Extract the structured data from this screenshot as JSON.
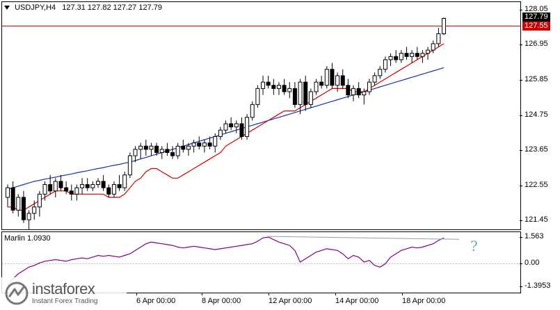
{
  "header": {
    "symbol": "USDJPY,H4",
    "ohlc": "127.31 127.82 127.27 127.79"
  },
  "price_axis": [
    "128.05",
    "126.95",
    "125.85",
    "124.75",
    "123.65",
    "122.55",
    "121.45"
  ],
  "current_price": "127.79",
  "hline_price": "127.55",
  "indicator": {
    "label": "Marlin 1.0930",
    "axis": [
      "1.563",
      "0.00",
      "-1.3953"
    ],
    "annotation": "?"
  },
  "time_axis": [
    "6 Apr 00:00",
    "8 Apr 00:00",
    "12 Apr 00:00",
    "14 Apr 00:00",
    "18 Apr 00:00"
  ],
  "watermark": {
    "name": "instaforex",
    "tagline": "Instant Forex Trading"
  },
  "colors": {
    "bull": "#ffffff",
    "bear": "#000000",
    "ma_fast": "#cc0000",
    "ma_slow": "#1a2fb0",
    "hline": "#cc0000",
    "osc": "#800080",
    "div": "#8fa0b0",
    "qmark": "#6fa8b8"
  },
  "chart_data": {
    "type": "candlestick",
    "y_axis_ticks": [
      128.05,
      126.95,
      125.85,
      124.75,
      123.65,
      122.55,
      121.45
    ],
    "ylim": [
      121.2,
      128.3
    ],
    "candles": [
      [
        122.2,
        122.6,
        121.9,
        122.5
      ],
      [
        122.5,
        122.7,
        121.7,
        121.8
      ],
      [
        121.8,
        122.3,
        121.6,
        122.2
      ],
      [
        122.2,
        122.4,
        121.4,
        121.5
      ],
      [
        121.5,
        121.8,
        121.1,
        121.7
      ],
      [
        121.7,
        122.1,
        121.5,
        121.9
      ],
      [
        121.9,
        122.4,
        121.6,
        122.3
      ],
      [
        122.3,
        122.7,
        122.1,
        122.6
      ],
      [
        122.6,
        122.9,
        122.3,
        122.4
      ],
      [
        122.4,
        122.8,
        122.2,
        122.7
      ],
      [
        122.7,
        122.9,
        122.4,
        122.5
      ],
      [
        122.5,
        122.7,
        122.3,
        122.4
      ],
      [
        122.4,
        122.6,
        122.1,
        122.3
      ],
      [
        122.3,
        122.6,
        122.1,
        122.5
      ],
      [
        122.5,
        122.8,
        122.3,
        122.6
      ],
      [
        122.6,
        122.8,
        122.4,
        122.5
      ],
      [
        122.5,
        122.7,
        122.4,
        122.6
      ],
      [
        122.6,
        122.8,
        122.5,
        122.7
      ],
      [
        122.7,
        122.9,
        122.4,
        122.5
      ],
      [
        122.5,
        122.6,
        122.2,
        122.3
      ],
      [
        122.3,
        122.7,
        122.2,
        122.6
      ],
      [
        122.6,
        122.9,
        122.4,
        122.5
      ],
      [
        122.5,
        123.0,
        122.4,
        122.9
      ],
      [
        122.9,
        123.6,
        122.8,
        123.5
      ],
      [
        123.5,
        123.8,
        123.3,
        123.7
      ],
      [
        123.7,
        123.9,
        123.4,
        123.8
      ],
      [
        123.8,
        124.0,
        123.5,
        123.7
      ],
      [
        123.7,
        123.9,
        123.5,
        123.8
      ],
      [
        123.8,
        123.9,
        123.5,
        123.6
      ],
      [
        123.6,
        123.8,
        123.4,
        123.7
      ],
      [
        123.7,
        123.9,
        123.5,
        123.6
      ],
      [
        123.6,
        123.8,
        123.4,
        123.5
      ],
      [
        123.5,
        123.9,
        123.4,
        123.8
      ],
      [
        123.8,
        124.0,
        123.6,
        123.7
      ],
      [
        123.7,
        123.9,
        123.5,
        123.8
      ],
      [
        123.8,
        124.0,
        123.6,
        123.9
      ],
      [
        123.9,
        124.1,
        123.7,
        123.8
      ],
      [
        123.8,
        124.0,
        123.6,
        123.9
      ],
      [
        123.9,
        124.1,
        123.7,
        123.8
      ],
      [
        123.8,
        124.2,
        123.6,
        124.1
      ],
      [
        124.1,
        124.4,
        124.0,
        124.3
      ],
      [
        124.3,
        124.6,
        124.2,
        124.5
      ],
      [
        124.5,
        124.7,
        124.3,
        124.4
      ],
      [
        124.4,
        124.6,
        124.2,
        124.5
      ],
      [
        124.5,
        124.7,
        124.0,
        124.1
      ],
      [
        124.1,
        124.8,
        124.0,
        124.7
      ],
      [
        124.7,
        125.2,
        124.6,
        125.1
      ],
      [
        125.1,
        125.7,
        125.0,
        125.6
      ],
      [
        125.6,
        126.0,
        125.4,
        125.8
      ],
      [
        125.8,
        126.0,
        125.6,
        125.7
      ],
      [
        125.7,
        125.9,
        125.4,
        125.6
      ],
      [
        125.6,
        125.8,
        125.4,
        125.7
      ],
      [
        125.7,
        125.9,
        125.4,
        125.5
      ],
      [
        125.5,
        125.8,
        125.3,
        125.6
      ],
      [
        125.6,
        125.8,
        125.0,
        125.1
      ],
      [
        125.1,
        125.9,
        124.8,
        125.8
      ],
      [
        125.8,
        126.0,
        124.9,
        125.1
      ],
      [
        125.1,
        125.6,
        125.0,
        125.5
      ],
      [
        125.5,
        125.9,
        125.4,
        125.8
      ],
      [
        125.8,
        126.0,
        125.6,
        125.7
      ],
      [
        125.7,
        126.3,
        125.6,
        126.2
      ],
      [
        126.2,
        126.4,
        125.6,
        125.7
      ],
      [
        125.7,
        126.1,
        125.5,
        126.0
      ],
      [
        126.0,
        126.2,
        125.6,
        125.7
      ],
      [
        125.7,
        125.9,
        125.3,
        125.4
      ],
      [
        125.4,
        125.7,
        125.2,
        125.6
      ],
      [
        125.6,
        125.8,
        125.3,
        125.4
      ],
      [
        125.4,
        125.6,
        125.1,
        125.5
      ],
      [
        125.5,
        125.9,
        125.4,
        125.8
      ],
      [
        125.8,
        126.1,
        125.7,
        126.0
      ],
      [
        126.0,
        126.3,
        125.9,
        126.2
      ],
      [
        126.2,
        126.6,
        126.1,
        126.5
      ],
      [
        126.5,
        126.7,
        126.3,
        126.6
      ],
      [
        126.6,
        126.8,
        126.4,
        126.5
      ],
      [
        126.5,
        126.8,
        126.4,
        126.7
      ],
      [
        126.7,
        126.9,
        126.5,
        126.6
      ],
      [
        126.6,
        126.8,
        126.4,
        126.7
      ],
      [
        126.7,
        126.9,
        126.5,
        126.6
      ],
      [
        126.6,
        126.8,
        126.4,
        126.7
      ],
      [
        126.7,
        126.9,
        126.5,
        126.8
      ],
      [
        126.8,
        127.1,
        126.7,
        127.0
      ],
      [
        127.0,
        127.5,
        126.9,
        127.31
      ],
      [
        127.31,
        127.82,
        127.27,
        127.79
      ]
    ],
    "ma_fast": [
      121.9,
      121.9,
      121.8,
      121.8,
      121.9,
      122.0,
      122.1,
      122.2,
      122.3,
      122.4,
      122.4,
      122.4,
      122.3,
      122.3,
      122.3,
      122.3,
      122.3,
      122.3,
      122.3,
      122.2,
      122.2,
      122.2,
      122.3,
      122.5,
      122.7,
      122.8,
      123.0,
      123.1,
      123.1,
      123.0,
      122.9,
      122.8,
      122.8,
      122.9,
      123.0,
      123.1,
      123.2,
      123.3,
      123.4,
      123.5,
      123.6,
      123.8,
      123.9,
      124.0,
      124.1,
      124.2,
      124.3,
      124.4,
      124.5,
      124.6,
      124.7,
      124.8,
      124.9,
      124.9,
      124.9,
      125.0,
      125.1,
      125.2,
      125.3,
      125.4,
      125.5,
      125.6,
      125.6,
      125.6,
      125.6,
      125.5,
      125.5,
      125.5,
      125.6,
      125.7,
      125.8,
      125.9,
      126.0,
      126.1,
      126.2,
      126.3,
      126.4,
      126.5,
      126.6,
      126.7,
      126.8,
      126.9,
      127.0
    ],
    "ma_slow": [
      122.45,
      122.5,
      122.55,
      122.6,
      122.65,
      122.7,
      122.73,
      122.77,
      122.8,
      122.83,
      122.87,
      122.9,
      122.93,
      122.97,
      123.0,
      123.03,
      123.07,
      123.1,
      123.13,
      123.17,
      123.2,
      123.23,
      123.27,
      123.3,
      123.35,
      123.4,
      123.45,
      123.5,
      123.55,
      123.6,
      123.65,
      123.7,
      123.75,
      123.8,
      123.85,
      123.9,
      123.95,
      124.0,
      124.05,
      124.1,
      124.15,
      124.2,
      124.25,
      124.3,
      124.35,
      124.4,
      124.45,
      124.5,
      124.55,
      124.6,
      124.65,
      124.7,
      124.75,
      124.8,
      124.85,
      124.9,
      124.95,
      125.0,
      125.05,
      125.1,
      125.15,
      125.2,
      125.25,
      125.3,
      125.35,
      125.4,
      125.45,
      125.5,
      125.55,
      125.6,
      125.65,
      125.7,
      125.75,
      125.8,
      125.85,
      125.9,
      125.95,
      126.0,
      126.05,
      126.1,
      126.15,
      126.2,
      126.25
    ],
    "hline": 127.55,
    "oscillator": {
      "name": "Marlin 1.0930",
      "ylim": [
        -1.3953,
        1.563
      ],
      "values": [
        -1.3,
        -0.9,
        -0.6,
        -0.4,
        -0.2,
        -0.1,
        0.05,
        0.15,
        0.2,
        0.25,
        0.2,
        0.15,
        0.25,
        0.3,
        0.35,
        0.3,
        0.4,
        0.5,
        0.45,
        0.5,
        0.45,
        0.4,
        0.5,
        0.6,
        0.8,
        1.0,
        1.2,
        1.3,
        1.25,
        1.2,
        1.15,
        1.1,
        1.0,
        0.95,
        1.0,
        1.05,
        1.0,
        0.95,
        0.9,
        0.85,
        0.9,
        0.95,
        1.0,
        1.05,
        1.1,
        1.15,
        1.2,
        1.35,
        1.55,
        1.6,
        1.45,
        1.3,
        1.2,
        1.1,
        0.8,
        0.1,
        0.3,
        0.5,
        0.7,
        0.8,
        0.9,
        0.85,
        0.8,
        0.6,
        0.3,
        0.5,
        0.4,
        0.1,
        0.2,
        -0.1,
        -0.2,
        0.0,
        0.4,
        0.6,
        0.8,
        0.9,
        1.0,
        0.95,
        1.0,
        1.1,
        1.2,
        1.4,
        1.55
      ],
      "div_line_start_index": 49,
      "div_line_end_index": 82
    }
  }
}
